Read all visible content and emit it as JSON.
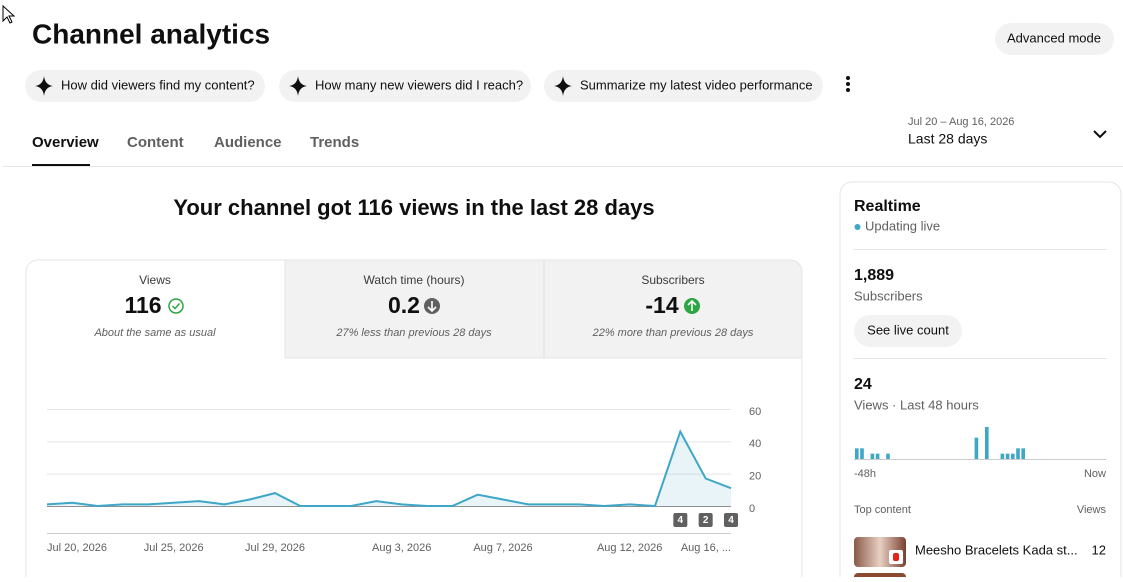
{
  "header": {
    "title": "Channel analytics",
    "advanced_mode": "Advanced mode"
  },
  "suggestions": [
    "How did viewers find my content?",
    "How many new viewers did I reach?",
    "Summarize my latest video performance"
  ],
  "tabs": [
    "Overview",
    "Content",
    "Audience",
    "Trends"
  ],
  "date_range": {
    "dates": "Jul 20 – Aug 16, 2026",
    "label": "Last 28 days"
  },
  "headline": "Your channel got 116 views in the last 28 days",
  "metrics": [
    {
      "label": "Views",
      "value": "116",
      "note": "About the same as usual"
    },
    {
      "label": "Watch time (hours)",
      "value": "0.2",
      "note": "27% less than previous 28 days"
    },
    {
      "label": "Subscribers",
      "value": "-14",
      "note": "22% more than previous 28 days"
    }
  ],
  "views_chart": {
    "type": "line",
    "categories": [
      "Jul 20, 2026",
      null,
      null,
      null,
      null,
      "Jul 25, 2026",
      null,
      null,
      null,
      "Jul 29, 2026",
      null,
      null,
      null,
      null,
      "Aug 3, 2026",
      null,
      null,
      null,
      "Aug 7, 2026",
      null,
      null,
      null,
      null,
      "Aug 12, 2026",
      null,
      null,
      null,
      "Aug 16, ..."
    ],
    "values": [
      1,
      2,
      0,
      1,
      1,
      2,
      3,
      1,
      4,
      8,
      0,
      0,
      0,
      3,
      1,
      0,
      0,
      7,
      4,
      1,
      1,
      1,
      0,
      1,
      0,
      46,
      17,
      11
    ],
    "color": "#3ea6c7",
    "ylim": [
      0,
      60
    ],
    "yticks": [
      0,
      20,
      40,
      60
    ],
    "grid": true,
    "markers": [
      "4",
      "2",
      "4"
    ]
  },
  "realtime": {
    "title": "Realtime",
    "status": "Updating live",
    "subscribers": {
      "value": "1,889",
      "label": "Subscribers",
      "button": "See live count"
    },
    "views": {
      "value": "24",
      "label": "Views · Last 48 hours"
    },
    "views_chart": {
      "type": "bar",
      "values": [
        2,
        2,
        0,
        1,
        1,
        0,
        1,
        0,
        0,
        0,
        0,
        0,
        0,
        0,
        0,
        0,
        0,
        0,
        0,
        0,
        0,
        0,
        0,
        4,
        0,
        6,
        0,
        0,
        1,
        1,
        1,
        2,
        2,
        0,
        0,
        0,
        0,
        0,
        0,
        0,
        0,
        0,
        0,
        0,
        0,
        0,
        0,
        0
      ],
      "color": "#3ea6c7",
      "x_labels": [
        "-48h",
        "Now"
      ]
    },
    "top_content": {
      "title": "Top content",
      "column": "Views",
      "items": [
        {
          "title": "Meesho Bracelets Kada st...",
          "views": "12"
        }
      ]
    }
  }
}
